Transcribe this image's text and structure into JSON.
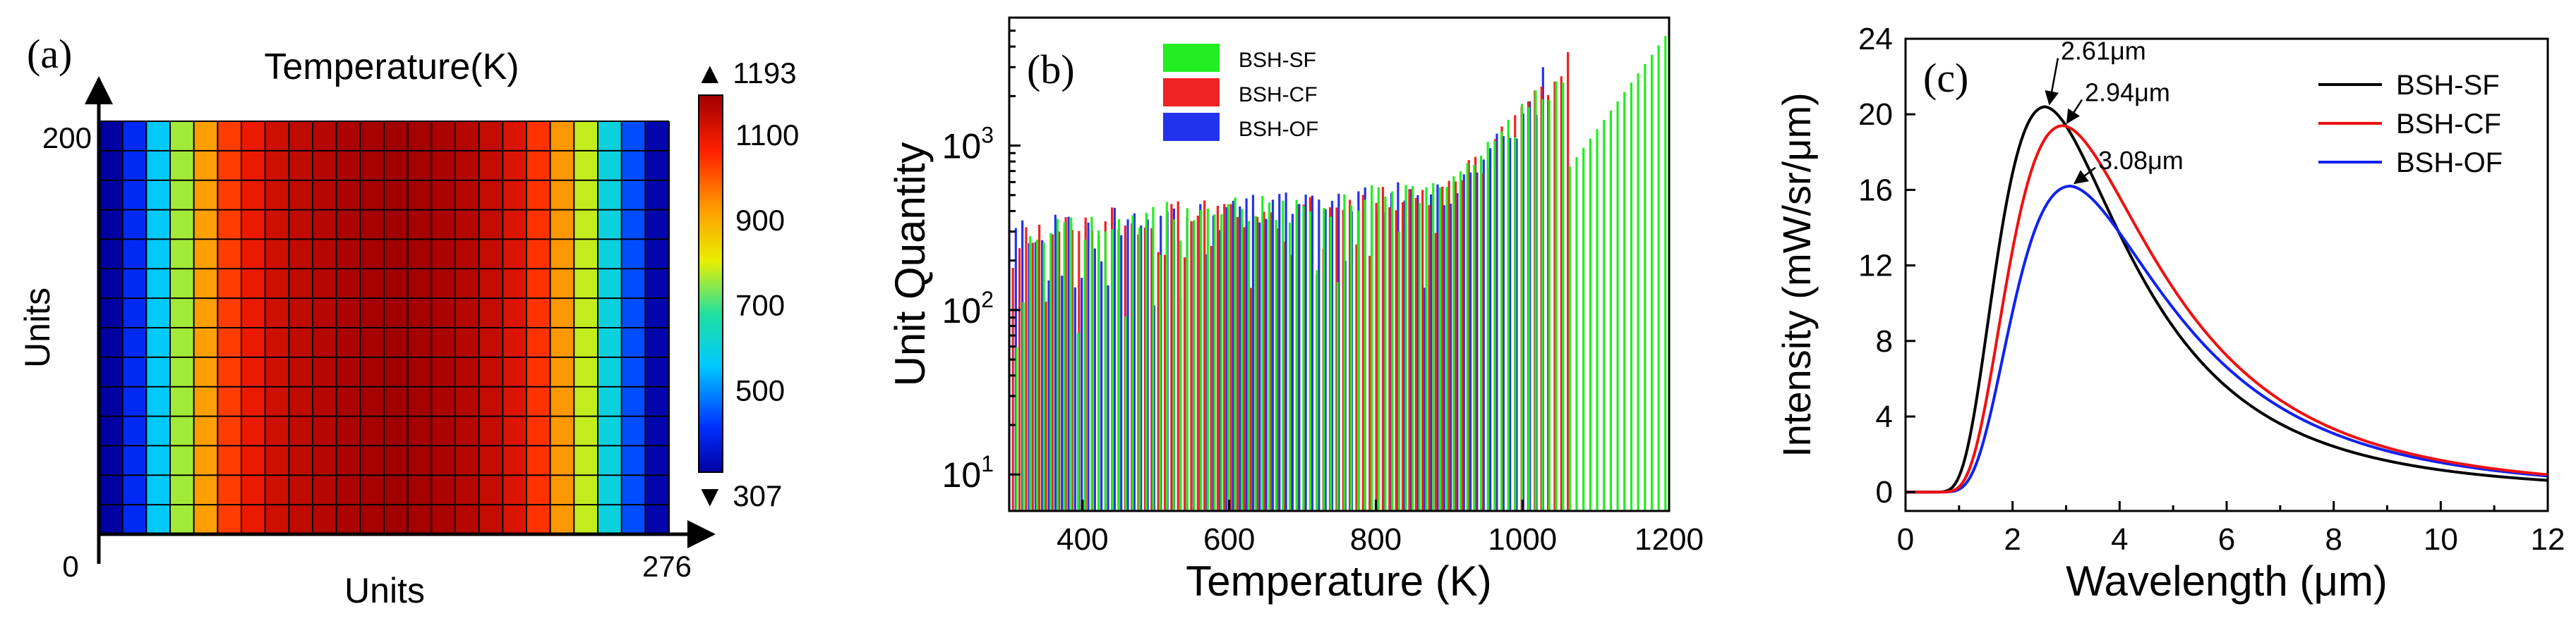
{
  "figure_description": "Three-panel scientific figure",
  "chart_data": [
    {
      "panel": "(a)",
      "type": "heatmap",
      "title": "Temperature(K)",
      "xlabel": "Units",
      "ylabel": "Units",
      "x_range": [
        0,
        276
      ],
      "y_range": [
        0,
        200
      ],
      "x_tick_labels": [
        "0",
        "276"
      ],
      "y_tick_labels": [
        "200"
      ],
      "grid_columns": 24,
      "grid_rows": 14,
      "colorbar": {
        "min": 307,
        "max": 1193,
        "min_label": "▼ 307",
        "max_label": "▲ 1193",
        "ticks": [
          500,
          700,
          900,
          1100
        ],
        "tick_labels": [
          "500",
          "700",
          "900",
          "1100"
        ]
      },
      "column_temperatures": [
        307,
        400,
        560,
        760,
        920,
        1030,
        1090,
        1130,
        1150,
        1165,
        1178,
        1188,
        1193,
        1188,
        1178,
        1165,
        1145,
        1110,
        1040,
        930,
        780,
        600,
        440,
        320
      ]
    },
    {
      "panel": "(b)",
      "type": "bar",
      "xlabel": "Temperature (K)",
      "ylabel": "Unit Quantity",
      "y_scale": "log",
      "xlim": [
        300,
        1200
      ],
      "ylim": [
        6,
        6000
      ],
      "x_ticks": [
        400,
        600,
        800,
        1000,
        1200
      ],
      "x_tick_labels": [
        "400",
        "600",
        "800",
        "1000",
        "1200"
      ],
      "y_tick_labels": [
        {
          "base": "10",
          "exp": "1"
        },
        {
          "base": "10",
          "exp": "2"
        },
        {
          "base": "10",
          "exp": "3"
        }
      ],
      "legend_location": "top-left",
      "series": [
        {
          "name": "BSH-SF",
          "color": "#22ee22",
          "x_start": 310,
          "x_end": 1195,
          "count": 96,
          "y_end_peak": 5000
        },
        {
          "name": "BSH-CF",
          "color": "#ee2222",
          "x_start": 305,
          "x_end": 1062,
          "count": 85,
          "y_end_peak": 3700
        },
        {
          "name": "BSH-OF",
          "color": "#2233ee",
          "x_start": 300,
          "x_end": 1028,
          "count": 82,
          "y_end_peak": 3000
        }
      ]
    },
    {
      "panel": "(c)",
      "type": "line",
      "xlabel": "Wavelength (μm)",
      "ylabel": "Intensity (mW/sr/μm)",
      "xlim": [
        0,
        12
      ],
      "ylim": [
        -1,
        24
      ],
      "x_ticks": [
        0,
        2,
        4,
        6,
        8,
        10,
        12
      ],
      "x_tick_labels": [
        "0",
        "2",
        "4",
        "6",
        "8",
        "10",
        "12"
      ],
      "y_ticks": [
        0,
        4,
        8,
        12,
        16,
        20,
        24
      ],
      "y_tick_labels": [
        "0",
        "4",
        "8",
        "12",
        "16",
        "20",
        "24"
      ],
      "legend_location": "top-right",
      "series": [
        {
          "name": "BSH-SF",
          "color": "#000000",
          "peak_wavelength": 2.61,
          "peak_intensity": 20.4,
          "tail_at_12": 0.62
        },
        {
          "name": "BSH-CF",
          "color": "#ee1111",
          "peak_wavelength": 2.94,
          "peak_intensity": 19.4,
          "tail_at_12": 0.92
        },
        {
          "name": "BSH-OF",
          "color": "#1122ee",
          "peak_wavelength": 3.08,
          "peak_intensity": 16.2,
          "tail_at_12": 0.85
        }
      ],
      "annotations": [
        {
          "text": "2.61μm",
          "x": 2.61,
          "y": 20.4
        },
        {
          "text": "2.94μm",
          "x": 2.94,
          "y": 19.4
        },
        {
          "text": "3.08μm",
          "x": 3.08,
          "y": 16.2
        }
      ]
    }
  ]
}
